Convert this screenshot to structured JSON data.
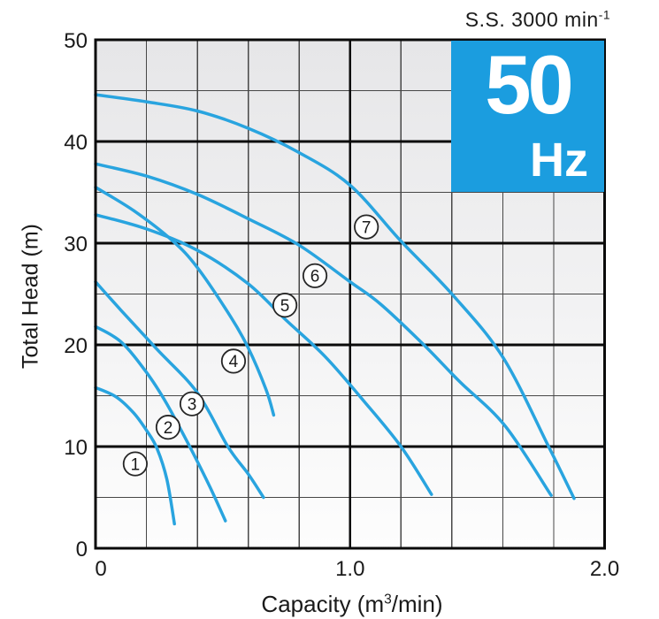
{
  "title": {
    "text": "S.S. 3000 min",
    "sup": "-1"
  },
  "badge": {
    "value": "50",
    "unit": "Hz",
    "bg_color": "#1b9ddf",
    "text_color": "#ffffff"
  },
  "chart_data": {
    "type": "line",
    "title": "S.S. 3000 min-1",
    "xlabel_pre": "Capacity (m",
    "xlabel_sup": "3",
    "xlabel_post": "/min)",
    "ylabel": "Total Head (m)",
    "xlim": [
      0,
      2.0
    ],
    "ylim": [
      0,
      50
    ],
    "x_minor_step": 0.2,
    "y_minor_step": 5,
    "x_major_ticks": [
      0,
      1.0,
      2.0
    ],
    "y_major_ticks": [
      0,
      10,
      20,
      30,
      40,
      50
    ],
    "x_tick_labels": [
      "0",
      "1.0",
      "2.0"
    ],
    "y_tick_labels": [
      "0",
      "10",
      "20",
      "30",
      "40",
      "50"
    ],
    "grid": true,
    "legend_position": "none",
    "badge_region": {
      "x_from": 1.4,
      "x_to": 2.0,
      "y_from": 35,
      "y_to": 50
    },
    "colors": {
      "curve": "#29a4df",
      "grid_minor": "#474747",
      "grid_major": "#0a0a0a",
      "plot_bg_top": "#e6e6e8",
      "plot_bg_bottom": "#fdfdfd",
      "marker_fill": "#ffffff",
      "marker_stroke": "#262626",
      "text": "#1a1a1a"
    },
    "series": [
      {
        "name": "curve-1",
        "label": "1",
        "label_pos": [
          0.156,
          8.3
        ],
        "points": [
          [
            0,
            15.8
          ],
          [
            0.08,
            14.9
          ],
          [
            0.15,
            13.3
          ],
          [
            0.2,
            11.6
          ],
          [
            0.24,
            9.9
          ],
          [
            0.28,
            6.8
          ],
          [
            0.31,
            2.4
          ]
        ]
      },
      {
        "name": "curve-2",
        "label": "2",
        "label_pos": [
          0.285,
          11.9
        ],
        "points": [
          [
            0,
            21.8
          ],
          [
            0.1,
            20.3
          ],
          [
            0.2,
            17.3
          ],
          [
            0.28,
            14.2
          ],
          [
            0.37,
            10.0
          ],
          [
            0.45,
            6.0
          ],
          [
            0.51,
            2.7
          ]
        ]
      },
      {
        "name": "curve-3",
        "label": "3",
        "label_pos": [
          0.379,
          14.2
        ],
        "points": [
          [
            0,
            26.2
          ],
          [
            0.1,
            23.4
          ],
          [
            0.24,
            19.6
          ],
          [
            0.4,
            15.3
          ],
          [
            0.52,
            10.0
          ],
          [
            0.6,
            7.3
          ],
          [
            0.66,
            5.0
          ]
        ]
      },
      {
        "name": "curve-4",
        "label": "4",
        "label_pos": [
          0.542,
          18.4
        ],
        "points": [
          [
            0,
            35.5
          ],
          [
            0.15,
            33.2
          ],
          [
            0.3,
            30.3
          ],
          [
            0.4,
            27.6
          ],
          [
            0.53,
            22.8
          ],
          [
            0.6,
            19.7
          ],
          [
            0.67,
            15.6
          ],
          [
            0.7,
            13.1
          ]
        ]
      },
      {
        "name": "curve-5",
        "label": "5",
        "label_pos": [
          0.744,
          23.9
        ],
        "points": [
          [
            0,
            32.8
          ],
          [
            0.2,
            31.4
          ],
          [
            0.4,
            29.3
          ],
          [
            0.6,
            26.0
          ],
          [
            0.75,
            22.4
          ],
          [
            0.9,
            18.9
          ],
          [
            1.05,
            14.6
          ],
          [
            1.2,
            10.0
          ],
          [
            1.32,
            5.3
          ]
        ]
      },
      {
        "name": "curve-6",
        "label": "6",
        "label_pos": [
          0.862,
          26.8
        ],
        "points": [
          [
            0,
            37.8
          ],
          [
            0.2,
            36.6
          ],
          [
            0.4,
            34.8
          ],
          [
            0.6,
            32.4
          ],
          [
            0.8,
            29.8
          ],
          [
            1.0,
            26.2
          ],
          [
            1.12,
            24.0
          ],
          [
            1.29,
            20.0
          ],
          [
            1.43,
            16.4
          ],
          [
            1.61,
            12.0
          ],
          [
            1.79,
            5.2
          ]
        ]
      },
      {
        "name": "curve-7",
        "label": "7",
        "label_pos": [
          1.064,
          31.6
        ],
        "points": [
          [
            0,
            44.6
          ],
          [
            0.2,
            43.9
          ],
          [
            0.4,
            43.0
          ],
          [
            0.6,
            41.3
          ],
          [
            0.8,
            38.9
          ],
          [
            1.0,
            35.7
          ],
          [
            1.2,
            30.2
          ],
          [
            1.4,
            25.0
          ],
          [
            1.6,
            18.8
          ],
          [
            1.78,
            10.0
          ],
          [
            1.88,
            4.9
          ]
        ]
      }
    ]
  }
}
